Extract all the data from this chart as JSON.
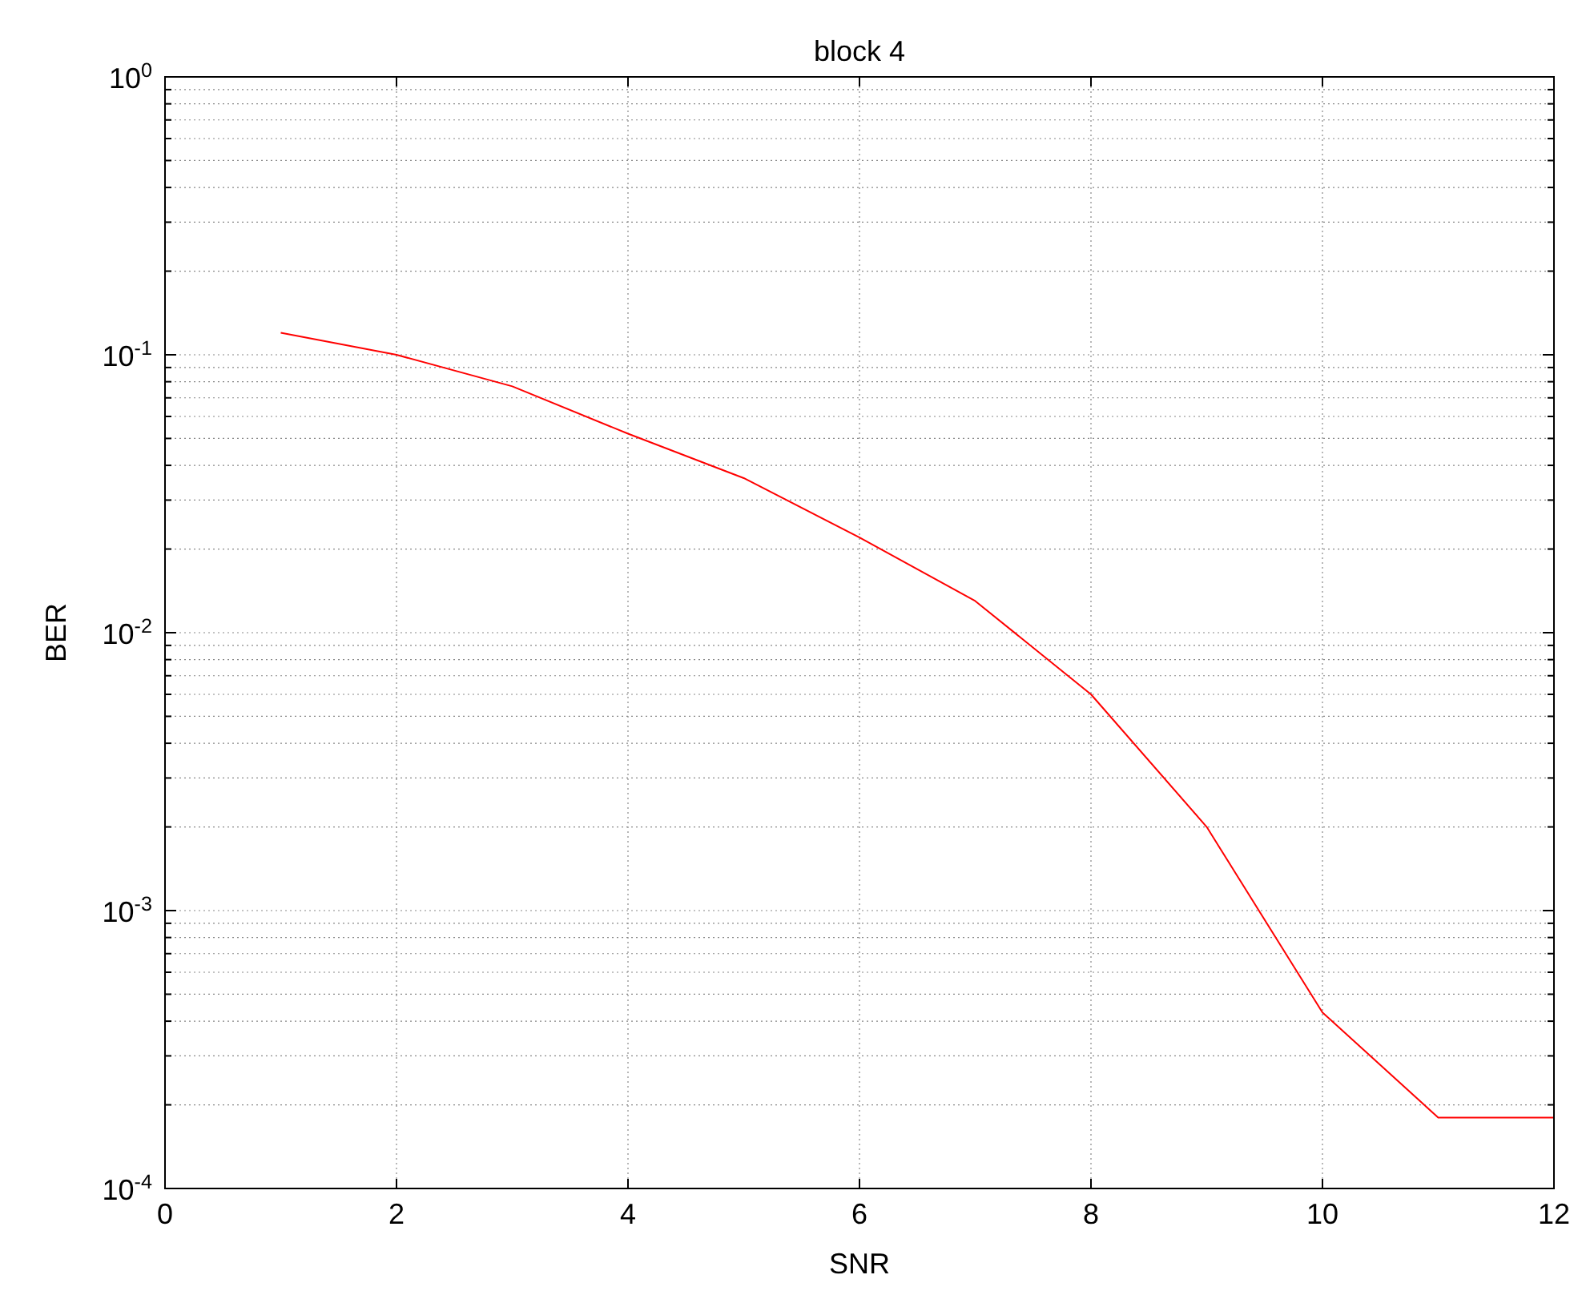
{
  "chart_data": {
    "type": "line",
    "title": "block 4",
    "xlabel": "SNR",
    "ylabel": "BER",
    "log": "y",
    "grid": true,
    "marker": "none",
    "line_style": "solid",
    "x": [
      1,
      2,
      3,
      4,
      5,
      6,
      7,
      8,
      9,
      10,
      11,
      12
    ],
    "series": [
      {
        "color": "#ff0000",
        "values": [
          0.12,
          0.1,
          0.077,
          0.052,
          0.036,
          0.022,
          0.013,
          0.006,
          0.002,
          0.00043,
          0.00018,
          0.00018
        ]
      }
    ],
    "xlim": [
      0,
      12
    ],
    "xticks": [
      0,
      2,
      4,
      6,
      8,
      10,
      12
    ],
    "ylim": [
      0.0001,
      1
    ],
    "yticks": [
      {
        "value": 0.0001,
        "label": "10$^{-4}$"
      },
      {
        "value": 0.0002,
        "label": null
      },
      {
        "value": 0.0003,
        "label": null
      },
      {
        "value": 0.0004,
        "label": null
      },
      {
        "value": 0.0005,
        "label": null
      },
      {
        "value": 0.0006,
        "label": null
      },
      {
        "value": 0.0007,
        "label": null
      },
      {
        "value": 0.0008,
        "label": null
      },
      {
        "value": 0.0009,
        "label": null
      },
      {
        "value": 0.001,
        "label": "10$^{-3}$"
      },
      {
        "value": 0.002,
        "label": null
      },
      {
        "value": 0.003,
        "label": null
      },
      {
        "value": 0.004,
        "label": null
      },
      {
        "value": 0.005,
        "label": null
      },
      {
        "value": 0.006,
        "label": null
      },
      {
        "value": 0.007,
        "label": null
      },
      {
        "value": 0.008,
        "label": null
      },
      {
        "value": 0.009,
        "label": null
      },
      {
        "value": 0.01,
        "label": "10$^{-2}$"
      },
      {
        "value": 0.02,
        "label": null
      },
      {
        "value": 0.03,
        "label": null
      },
      {
        "value": 0.04,
        "label": null
      },
      {
        "value": 0.05,
        "label": null
      },
      {
        "value": 0.06,
        "label": null
      },
      {
        "value": 0.07,
        "label": null
      },
      {
        "value": 0.08,
        "label": null
      },
      {
        "value": 0.09,
        "label": null
      },
      {
        "value": 0.1,
        "label": "10$^{-1}$"
      },
      {
        "value": 0.2,
        "label": null
      },
      {
        "value": 0.3,
        "label": null
      },
      {
        "value": 0.4,
        "label": null
      },
      {
        "value": 0.5,
        "label": null
      },
      {
        "value": 0.6,
        "label": null
      },
      {
        "value": 0.7,
        "label": null
      },
      {
        "value": 0.8,
        "label": null
      },
      {
        "value": 0.9,
        "label": null
      },
      {
        "value": 1,
        "label": "10$^{0}$"
      }
    ]
  }
}
